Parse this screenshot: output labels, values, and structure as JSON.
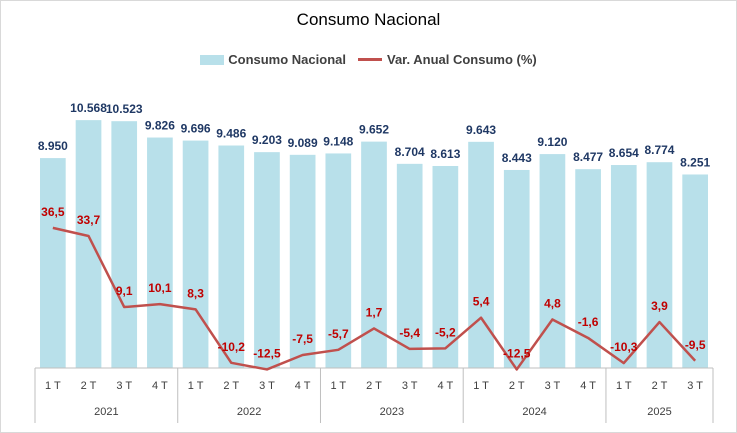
{
  "chart_data": {
    "type": "bar",
    "title": "Consumo Nacional",
    "legend": {
      "bar": "Consumo Nacional",
      "line": "Var. Anual Consumo (%)",
      "position": "top-center"
    },
    "categories": [
      "1 T",
      "2 T",
      "3 T",
      "4 T",
      "1 T",
      "2 T",
      "3 T",
      "4 T",
      "1 T",
      "2 T",
      "3 T",
      "4 T",
      "1 T",
      "2 T",
      "3 T",
      "4 T",
      "1 T",
      "2 T",
      "3 T"
    ],
    "years": [
      {
        "label": "2021",
        "count": 4
      },
      {
        "label": "2022",
        "count": 4
      },
      {
        "label": "2023",
        "count": 4
      },
      {
        "label": "2024",
        "count": 4
      },
      {
        "label": "2025",
        "count": 3
      }
    ],
    "series": [
      {
        "name": "Consumo Nacional",
        "kind": "bar",
        "values": [
          8950,
          10568,
          10523,
          9826,
          9696,
          9486,
          9203,
          9089,
          9148,
          9652,
          8704,
          8613,
          9643,
          8443,
          9120,
          8477,
          8654,
          8774,
          8251
        ],
        "labels": [
          "8.950",
          "10.568",
          "10.523",
          "9.826",
          "9.696",
          "9.486",
          "9.203",
          "9.089",
          "9.148",
          "9.652",
          "8.704",
          "8.613",
          "9.643",
          "8.443",
          "9.120",
          "8.477",
          "8.654",
          "8.774",
          "8.251"
        ],
        "color": "#b8e0ea"
      },
      {
        "name": "Var. Anual Consumo (%)",
        "kind": "line",
        "values": [
          36.5,
          33.7,
          9.1,
          10.1,
          8.3,
          -10.2,
          -12.5,
          -7.5,
          -5.7,
          1.7,
          -5.4,
          -5.2,
          5.4,
          -12.5,
          4.8,
          -1.6,
          -10.3,
          3.9,
          -9.5
        ],
        "labels": [
          "36,5",
          "33,7",
          "9,1",
          "10,1",
          "8,3",
          "-10,2",
          "-12,5",
          "-7,5",
          "-5,7",
          "1,7",
          "-5,4",
          "-5,2",
          "5,4",
          "-12,5",
          "4,8",
          "-1,6",
          "-10,3",
          "3,9",
          "-9,5"
        ],
        "color": "#c0504d",
        "label_color": "#c00000"
      }
    ],
    "bar_axis_range": [
      0,
      11000
    ],
    "line_axis_range": [
      -30,
      60
    ]
  }
}
